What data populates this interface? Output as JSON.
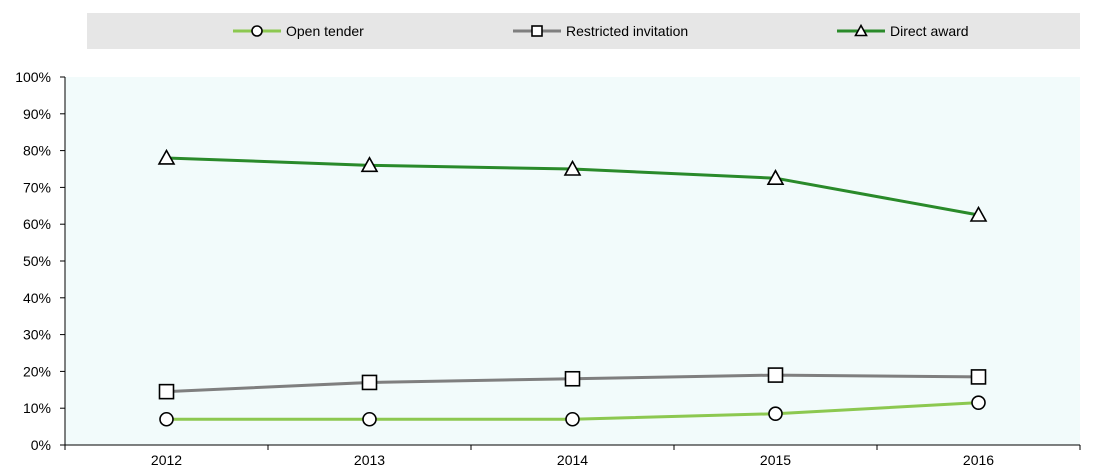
{
  "chart_data": {
    "type": "line",
    "title": "",
    "xlabel": "",
    "ylabel": "",
    "categories": [
      "2012",
      "2013",
      "2014",
      "2015",
      "2016"
    ],
    "ylim": [
      0,
      100
    ],
    "yticks": [
      0,
      10,
      20,
      30,
      40,
      50,
      60,
      70,
      80,
      90,
      100
    ],
    "ytick_labels": [
      "0%",
      "10%",
      "20%",
      "30%",
      "40%",
      "50%",
      "60%",
      "70%",
      "80%",
      "90%",
      "100%"
    ],
    "grid": false,
    "legend_position": "top",
    "plot_background": "#f2fbfb",
    "legend_background": "#e6e6e6",
    "series": [
      {
        "name": "Open tender",
        "values": [
          7,
          7,
          7,
          8.5,
          11.5
        ],
        "color": "#8cc850",
        "marker": "circle"
      },
      {
        "name": "Restricted invitation",
        "values": [
          14.5,
          17,
          18,
          19,
          18.5
        ],
        "color": "#7f7f7f",
        "marker": "square"
      },
      {
        "name": "Direct award",
        "values": [
          78,
          76,
          75,
          72.5,
          62.5
        ],
        "color": "#2a8a2a",
        "marker": "triangle"
      }
    ]
  }
}
